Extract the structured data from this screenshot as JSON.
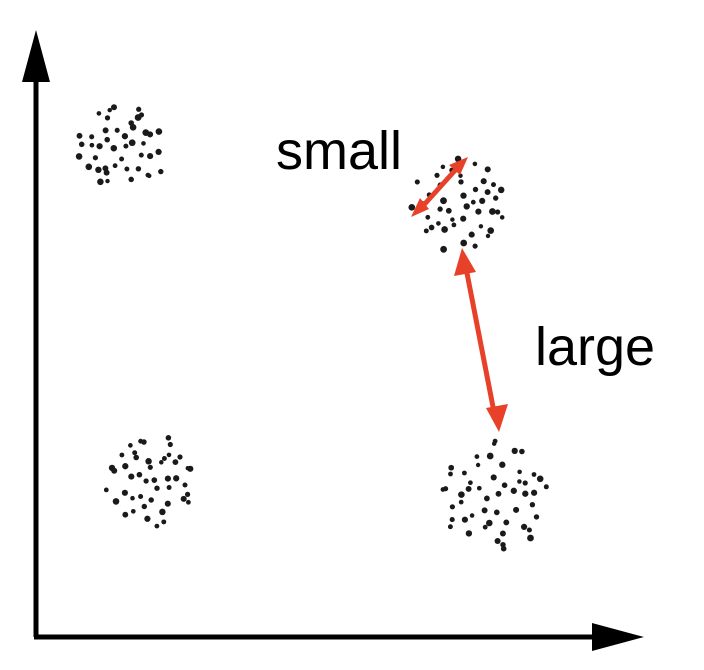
{
  "labels": {
    "small": "small",
    "large": "large"
  },
  "colors": {
    "axis": "#000000",
    "points": "#1a1a1a",
    "arrow": "#e8412a"
  },
  "clusters": [
    {
      "id": "top-left",
      "points": 44
    },
    {
      "id": "top-right",
      "points": 46
    },
    {
      "id": "bottom-left",
      "points": 46
    },
    {
      "id": "bottom-right",
      "points": 52
    }
  ]
}
